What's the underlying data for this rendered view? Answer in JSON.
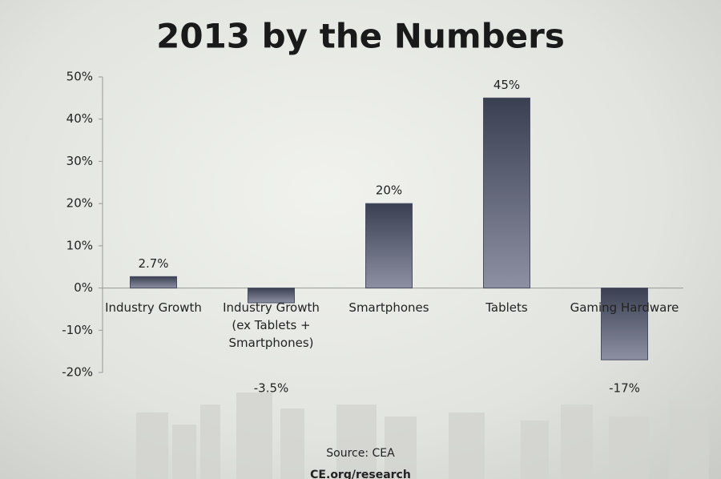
{
  "chart_data": {
    "type": "bar",
    "title": "2013 by the Numbers",
    "categories": [
      "Industry Growth",
      "Industry Growth (ex Tablets + Smartphones)",
      "Smartphones",
      "Tablets",
      "Gaming Hardware"
    ],
    "values": [
      2.7,
      -3.5,
      20,
      45,
      -17
    ],
    "value_labels": [
      "2.7%",
      "-3.5%",
      "20%",
      "45%",
      "-17%"
    ],
    "color": "#4a4e62",
    "ylim": [
      -20,
      50
    ],
    "yticks": [
      {
        "value": -20,
        "label": "-20%"
      },
      {
        "value": -10,
        "label": "-10%"
      },
      {
        "value": 0,
        "label": "0%"
      },
      {
        "value": 10,
        "label": "10%"
      },
      {
        "value": 20,
        "label": "20%"
      },
      {
        "value": 30,
        "label": "30%"
      },
      {
        "value": 40,
        "label": "40%"
      },
      {
        "value": 50,
        "label": "50%"
      }
    ],
    "source": "Source: CEA",
    "url": "CE.org/research"
  }
}
